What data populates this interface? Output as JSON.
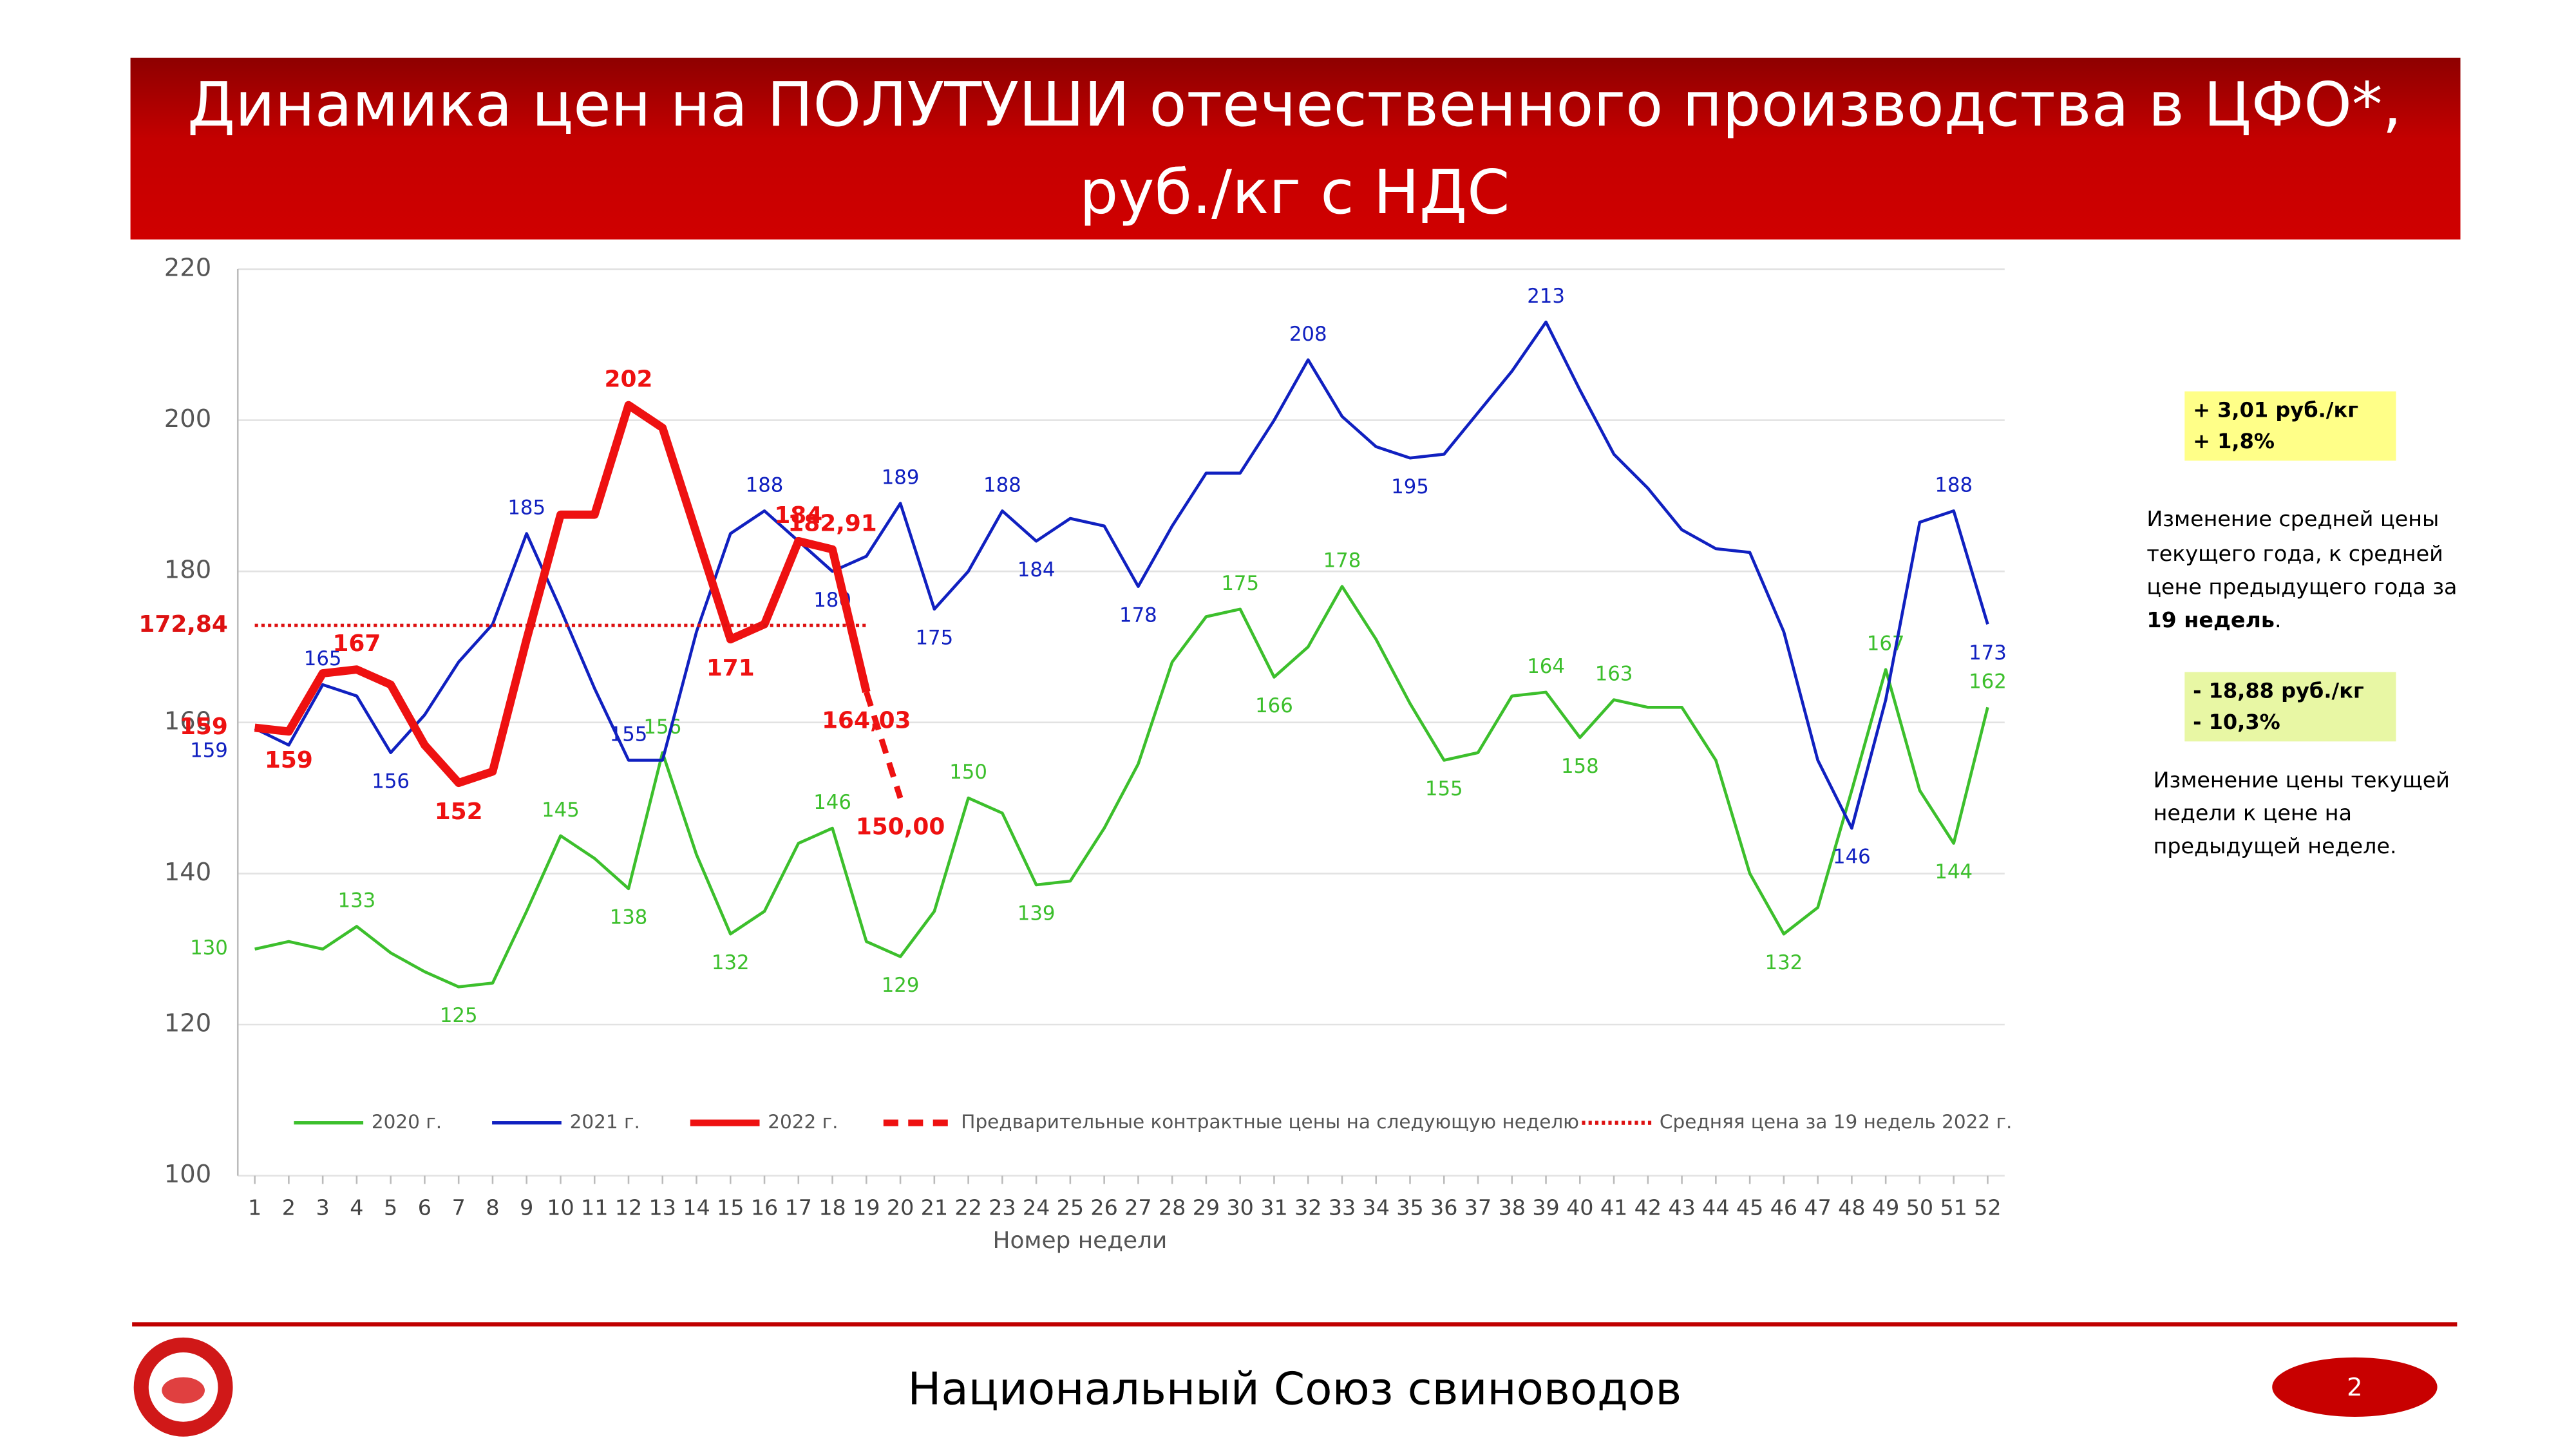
{
  "header": {
    "title_lines": [
      "Динамика цен на ПОЛУТУШИ отечественного производства в ЦФО*,",
      "руб./кг с НДС"
    ]
  },
  "chart_data": {
    "type": "line",
    "x_label": "Номер недели",
    "x": [
      1,
      2,
      3,
      4,
      5,
      6,
      7,
      8,
      9,
      10,
      11,
      12,
      13,
      14,
      15,
      16,
      17,
      18,
      19,
      20,
      21,
      22,
      23,
      24,
      25,
      26,
      27,
      28,
      29,
      30,
      31,
      32,
      33,
      34,
      35,
      36,
      37,
      38,
      39,
      40,
      41,
      42,
      43,
      44,
      45,
      46,
      47,
      48,
      49,
      50,
      51,
      52
    ],
    "xlim": [
      0.5,
      52.5
    ],
    "xticks": [
      1,
      2,
      3,
      4,
      5,
      6,
      7,
      8,
      9,
      10,
      11,
      12,
      13,
      14,
      15,
      16,
      17,
      18,
      19,
      20,
      21,
      22,
      23,
      24,
      25,
      26,
      27,
      28,
      29,
      30,
      31,
      32,
      33,
      34,
      35,
      36,
      37,
      38,
      39,
      40,
      41,
      42,
      43,
      44,
      45,
      46,
      47,
      48,
      49,
      50,
      51,
      52
    ],
    "ylim": [
      100,
      220
    ],
    "yticks": [
      100,
      120,
      140,
      160,
      180,
      200,
      220
    ],
    "grid": true,
    "legend": "bottom",
    "series": [
      {
        "name": "2020 г.",
        "color": "#3cbf2c",
        "style": "solid",
        "values": [
          130,
          131,
          130,
          133,
          129.5,
          127,
          125,
          125.5,
          135,
          145,
          142,
          138,
          156,
          142.5,
          132,
          135,
          144,
          146,
          131,
          129,
          135,
          150,
          148,
          138.5,
          139,
          146,
          154.5,
          168,
          174,
          175,
          166,
          170,
          178,
          171,
          162.5,
          155,
          156,
          163.5,
          164,
          158,
          163,
          162,
          162,
          155,
          140,
          132,
          135.5,
          151,
          167,
          151,
          144,
          162
        ],
        "value_labels": [
          "130",
          null,
          null,
          "133",
          null,
          null,
          "125",
          null,
          null,
          "145",
          null,
          "138",
          "156",
          null,
          "132",
          null,
          null,
          "146",
          null,
          "129",
          null,
          "150",
          null,
          "139",
          null,
          null,
          null,
          null,
          null,
          "175",
          "166",
          null,
          "178",
          null,
          null,
          "155",
          null,
          null,
          "164",
          "158",
          "163",
          null,
          null,
          null,
          null,
          "132",
          null,
          null,
          "167",
          null,
          "144",
          "162"
        ]
      },
      {
        "name": "2021 г.",
        "color": "#1020c0",
        "style": "solid",
        "values": [
          159.2,
          157,
          165,
          163.5,
          156,
          161,
          168,
          173,
          185,
          175,
          164.5,
          155,
          155,
          172,
          185,
          188,
          184,
          180,
          182,
          189,
          175,
          180,
          188,
          184,
          187,
          186,
          178,
          186,
          193,
          193,
          200,
          208,
          200.5,
          196.5,
          195,
          195.5,
          201,
          206.5,
          213,
          204,
          195.5,
          191,
          185.5,
          183,
          182.5,
          172,
          155,
          146,
          163,
          186.5,
          188,
          173
        ],
        "value_labels": [
          "159",
          null,
          "165",
          null,
          "156",
          null,
          null,
          null,
          "185",
          null,
          null,
          "155",
          null,
          null,
          null,
          "188",
          null,
          "180",
          null,
          "189",
          "175",
          null,
          "188",
          "184",
          null,
          null,
          "178",
          null,
          null,
          null,
          null,
          "208",
          null,
          null,
          "195",
          null,
          null,
          null,
          "213",
          null,
          null,
          null,
          null,
          null,
          null,
          null,
          null,
          "146",
          null,
          null,
          "188",
          "173"
        ]
      },
      {
        "name": "2022 г.",
        "color": "#ee1111",
        "style": "thick",
        "values": [
          159.3,
          158.8,
          166.5,
          167,
          165,
          157,
          152,
          153.5,
          171,
          187.5,
          187.5,
          202,
          199,
          185,
          171,
          173,
          184,
          182.91,
          164.03,
          null,
          null,
          null,
          null,
          null,
          null,
          null,
          null,
          null,
          null,
          null,
          null,
          null,
          null,
          null,
          null,
          null,
          null,
          null,
          null,
          null,
          null,
          null,
          null,
          null,
          null,
          null,
          null,
          null,
          null,
          null,
          null,
          null
        ],
        "value_labels": [
          "159",
          "159",
          null,
          "167",
          null,
          null,
          "152",
          null,
          null,
          null,
          null,
          "202",
          null,
          null,
          "171",
          null,
          "184",
          "182,91",
          "164,03",
          null,
          null,
          null,
          null,
          null,
          null,
          null,
          null,
          null,
          null,
          null,
          null,
          null,
          null,
          null,
          null,
          null,
          null,
          null,
          null,
          null,
          null,
          null,
          null,
          null,
          null,
          null,
          null,
          null,
          null,
          null,
          null,
          null
        ]
      },
      {
        "name": "Предварительные контрактные цены на следующую неделю",
        "color": "#ee1111",
        "style": "dashed",
        "x": [
          19,
          20
        ],
        "values": [
          164.03,
          150.0
        ],
        "value_labels": [
          null,
          "150,00"
        ]
      },
      {
        "name": "Средняя цена за 19 недель 2022 г.",
        "color": "#dd1111",
        "style": "dotted",
        "x": [
          1,
          19
        ],
        "values": [
          172.84,
          172.84
        ],
        "value_labels": [
          "172,84",
          null
        ]
      }
    ]
  },
  "notes": [
    {
      "box_lines": [
        "+ 3,01 руб./кг",
        "+ 1,8%"
      ],
      "text_lines": [
        "Изменение средней цены",
        "текущего года, к средней",
        "цене предыдущего года за"
      ],
      "text_bold": "19 недель",
      "text_end": "."
    },
    {
      "box_lines": [
        "- 18,88 руб./кг",
        "- 10,3%"
      ],
      "text_lines": [
        "Изменение цены текущей",
        "недели к цене на",
        "предыдущей неделе."
      ]
    }
  ],
  "footer": {
    "text": "Национальный Союз свиноводов",
    "page": "2"
  }
}
